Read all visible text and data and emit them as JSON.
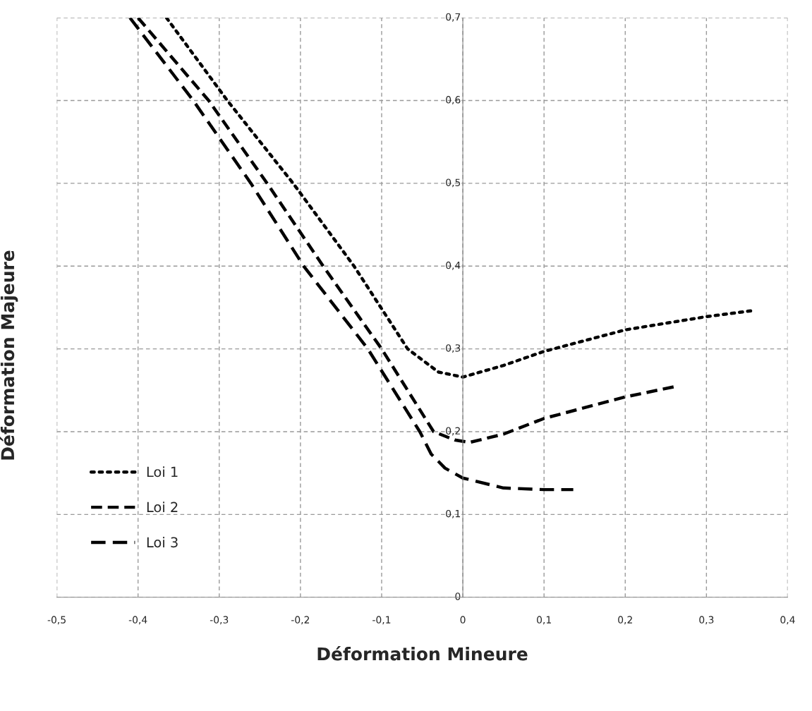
{
  "chart_data": {
    "type": "line",
    "xlabel": "Déformation Mineure",
    "ylabel": "Déformation Majeure",
    "xlim": [
      -0.5,
      0.4
    ],
    "ylim": [
      0,
      0.7
    ],
    "xticks": [
      {
        "value": -0.5,
        "label": "-0,5"
      },
      {
        "value": -0.4,
        "label": "-0,4"
      },
      {
        "value": -0.3,
        "label": "-0,3"
      },
      {
        "value": -0.2,
        "label": "-0,2"
      },
      {
        "value": -0.1,
        "label": "-0,1"
      },
      0,
      {
        "value": 0.1,
        "label": "0,1"
      },
      {
        "value": 0.2,
        "label": "0,2"
      },
      {
        "value": 0.3,
        "label": "0,3"
      },
      {
        "value": 0.4,
        "label": "0,4"
      }
    ],
    "yticks": [
      0,
      {
        "value": 0.1,
        "label": "0,1"
      },
      {
        "value": 0.2,
        "label": "0,2"
      },
      {
        "value": 0.3,
        "label": "0,3"
      },
      {
        "value": 0.4,
        "label": "0,4"
      },
      {
        "value": 0.5,
        "label": "0,5"
      },
      {
        "value": 0.6,
        "label": "0,6"
      },
      {
        "value": 0.7,
        "label": "0,7"
      }
    ],
    "grid": true,
    "legend": "bottom left",
    "series": [
      {
        "name": "Loi 1",
        "color": "#000000",
        "line_style": "dotted",
        "x": [
          -0.365,
          -0.29,
          -0.209,
          -0.134,
          -0.068,
          -0.03,
          0,
          0.05,
          0.1,
          0.2,
          0.3,
          0.355
        ],
        "values": [
          0.7,
          0.6,
          0.5,
          0.4,
          0.3,
          0.272,
          0.266,
          0.28,
          0.297,
          0.323,
          0.339,
          0.346
        ]
      },
      {
        "name": "Loi 2",
        "color": "#000000",
        "line_style": "dashed",
        "x": [
          -0.4,
          -0.313,
          -0.241,
          -0.172,
          -0.1,
          -0.036,
          -0.01,
          0.008,
          0.05,
          0.1,
          0.2,
          0.264
        ],
        "values": [
          0.7,
          0.6,
          0.5,
          0.4,
          0.3,
          0.2,
          0.19,
          0.187,
          0.197,
          0.216,
          0.242,
          0.255
        ]
      },
      {
        "name": "Loi 3",
        "color": "#000000",
        "line_style": "dashed",
        "x": [
          -0.41,
          -0.332,
          -0.261,
          -0.196,
          -0.117,
          -0.053,
          -0.039,
          -0.022,
          0,
          0.05,
          0.1,
          0.136
        ],
        "values": [
          0.7,
          0.6,
          0.5,
          0.4,
          0.3,
          0.2,
          0.173,
          0.156,
          0.144,
          0.132,
          0.13,
          0.13
        ]
      }
    ]
  }
}
